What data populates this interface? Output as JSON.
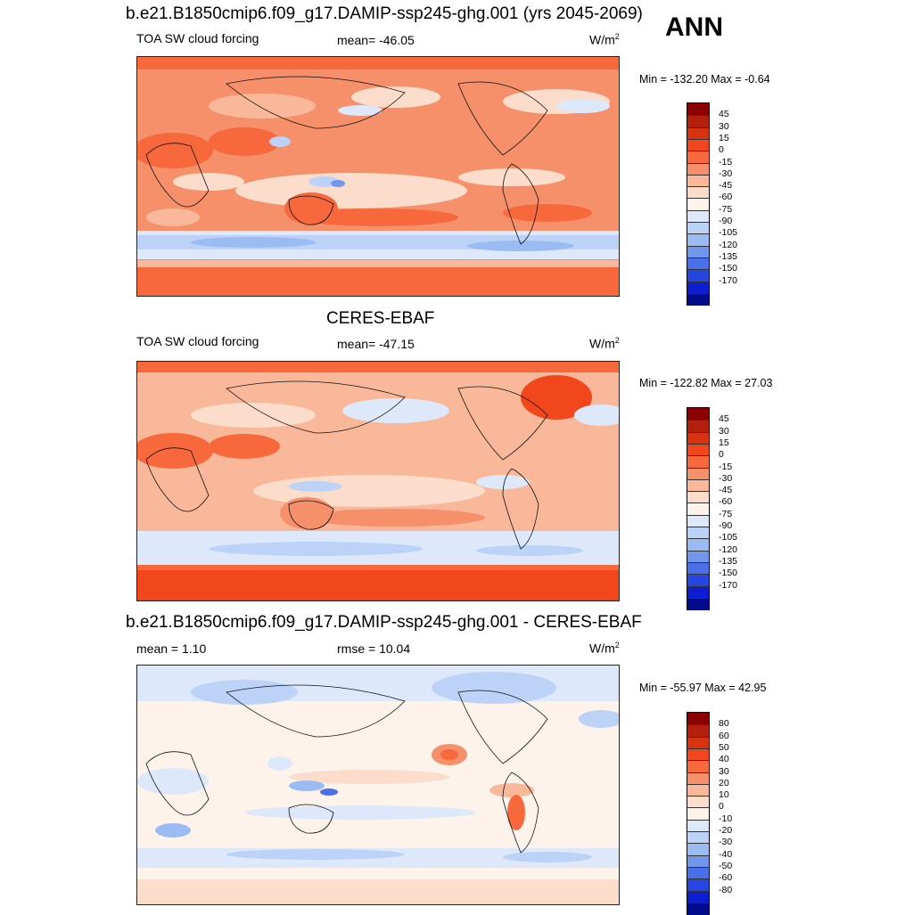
{
  "season": "ANN",
  "unit_base": "W/m",
  "unit_exp": "2",
  "panels": [
    {
      "title": "b.e21.B1850cmip6.f09_g17.DAMIP-ssp245-ghg.001 (yrs 2045-2069)",
      "left": "TOA SW cloud forcing",
      "center": "mean= -46.05",
      "minmax": "Min = -132.20 Max =  -0.64",
      "scale": "abs"
    },
    {
      "title": "CERES-EBAF",
      "left": "TOA SW cloud forcing",
      "center": "mean= -47.15",
      "minmax": "Min = -122.82 Max =  27.03",
      "scale": "abs"
    },
    {
      "title": "b.e21.B1850cmip6.f09_g17.DAMIP-ssp245-ghg.001 - CERES-EBAF",
      "left": "mean =   1.10",
      "center": "rmse =  10.04",
      "minmax": "Min = -55.97 Max =  42.95",
      "scale": "diff"
    }
  ],
  "colorbars": {
    "abs": {
      "labels": [
        "45",
        "30",
        "15",
        "0",
        "-15",
        "-30",
        "-45",
        "-60",
        "-75",
        "-90",
        "-105",
        "-120",
        "-135",
        "-150",
        "-170"
      ],
      "colors": [
        "#8b0000",
        "#b3200c",
        "#d83311",
        "#f2461c",
        "#f7693c",
        "#f5906a",
        "#f9b89a",
        "#fcdcca",
        "#fdf3ea",
        "#dde9fb",
        "#bcd3f7",
        "#9bbcf2",
        "#7097ec",
        "#4a6fe8",
        "#2547e0",
        "#0b1ed0",
        "#000c8c"
      ]
    },
    "diff": {
      "labels": [
        "80",
        "60",
        "50",
        "40",
        "30",
        "20",
        "10",
        "0",
        "-10",
        "-20",
        "-30",
        "-40",
        "-50",
        "-60",
        "-80"
      ],
      "colors": [
        "#8b0000",
        "#b3200c",
        "#d83311",
        "#f2461c",
        "#f7693c",
        "#f5906a",
        "#f9b89a",
        "#fcdcca",
        "#fdf3ea",
        "#dde9fb",
        "#bcd3f7",
        "#9bbcf2",
        "#7097ec",
        "#4a6fe8",
        "#2547e0",
        "#0b1ed0",
        "#000c8c"
      ]
    }
  }
}
